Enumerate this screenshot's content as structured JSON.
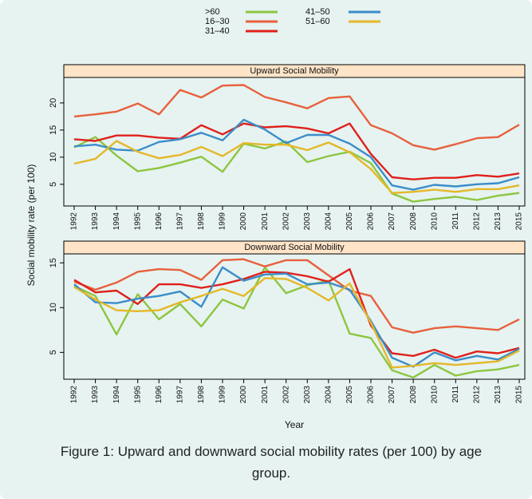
{
  "ylabel": "Social mobility rate (per 100)",
  "xlabel": "Year",
  "caption": "Figure 1: Upward and downward  social mobility rates (per 100) by age group.",
  "chart_data": [
    {
      "type": "line",
      "title": "Upward Social Mobility",
      "categories": [
        "1992",
        "1993",
        "1994",
        "1995",
        "1996",
        "1997",
        "1998",
        "1999",
        "2000",
        "2001",
        "2002",
        "2003",
        "2004",
        "2005",
        "2006",
        "2007",
        "2008",
        "2010",
        "2011",
        "2012",
        "2013",
        "2015"
      ],
      "ylim": [
        1,
        24.7
      ],
      "yticks": [
        5,
        10,
        15,
        20
      ],
      "series": [
        {
          "name": ">60",
          "color": "#8dc63f",
          "values": [
            11.8,
            13.7,
            10.3,
            7.4,
            8.0,
            9.0,
            10.1,
            7.3,
            12.5,
            11.6,
            12.9,
            9.1,
            10.2,
            11.0,
            8.9,
            3.3,
            1.8,
            2.3,
            2.7,
            2.1,
            2.9,
            3.4
          ]
        },
        {
          "name": "16–30",
          "color": "#e8603c",
          "values": [
            17.5,
            17.9,
            18.4,
            19.9,
            17.9,
            22.4,
            21.0,
            23.2,
            23.3,
            21.1,
            20.1,
            19.0,
            20.9,
            21.2,
            15.9,
            14.4,
            12.2,
            11.4,
            12.4,
            13.5,
            13.7,
            16.0
          ]
        },
        {
          "name": "31–40",
          "color": "#e0201b",
          "values": [
            13.3,
            13.0,
            14.0,
            14.0,
            13.6,
            13.4,
            15.9,
            14.2,
            16.2,
            15.5,
            15.7,
            15.3,
            14.4,
            16.2,
            10.6,
            6.3,
            5.9,
            6.2,
            6.2,
            6.7,
            6.4,
            7.0
          ]
        },
        {
          "name": "41–50",
          "color": "#3b8dc9",
          "values": [
            12.0,
            12.3,
            11.4,
            11.2,
            12.8,
            13.3,
            14.5,
            13.1,
            16.9,
            15.1,
            12.6,
            14.1,
            14.1,
            12.5,
            10.0,
            4.8,
            4.0,
            4.9,
            4.6,
            5.0,
            5.2,
            6.3
          ]
        },
        {
          "name": "51–60",
          "color": "#e4b829",
          "values": [
            8.8,
            9.7,
            13.0,
            11.0,
            9.8,
            10.4,
            11.9,
            10.2,
            12.6,
            12.3,
            12.3,
            11.3,
            12.7,
            10.9,
            7.8,
            3.4,
            3.6,
            4.0,
            3.6,
            4.1,
            4.1,
            4.8
          ]
        }
      ]
    },
    {
      "type": "line",
      "title": "Downward Social Mobility",
      "categories": [
        "1992",
        "1993",
        "1994",
        "1995",
        "1996",
        "1997",
        "1998",
        "1999",
        "2000",
        "2001",
        "2002",
        "2003",
        "2004",
        "2005",
        "2006",
        "2007",
        "2008",
        "2010",
        "2011",
        "2012",
        "2013",
        "2015"
      ],
      "ylim": [
        2,
        16
      ],
      "yticks": [
        5,
        10,
        15
      ],
      "series": [
        {
          "name": ">60",
          "color": "#8dc63f",
          "values": [
            12.4,
            11.3,
            7.0,
            11.5,
            8.7,
            10.4,
            7.9,
            10.9,
            9.9,
            14.5,
            11.6,
            12.5,
            13.0,
            7.1,
            6.6,
            3.0,
            2.2,
            3.6,
            2.4,
            2.9,
            3.1,
            3.6
          ]
        },
        {
          "name": "16–30",
          "color": "#e8603c",
          "values": [
            12.9,
            12.0,
            12.8,
            14.0,
            14.3,
            14.2,
            13.1,
            15.3,
            15.4,
            14.6,
            15.3,
            15.3,
            13.6,
            11.9,
            11.3,
            7.8,
            7.2,
            7.7,
            7.9,
            7.7,
            7.5,
            8.7
          ]
        },
        {
          "name": "31–40",
          "color": "#e0201b",
          "values": [
            13.1,
            11.7,
            11.9,
            10.4,
            12.6,
            12.6,
            12.2,
            12.6,
            13.2,
            14.0,
            13.9,
            13.5,
            12.9,
            14.3,
            8.0,
            4.9,
            4.6,
            5.3,
            4.4,
            5.1,
            4.9,
            5.5
          ]
        },
        {
          "name": "41–50",
          "color": "#3b8dc9",
          "values": [
            12.6,
            10.6,
            10.5,
            11.0,
            11.3,
            11.8,
            10.1,
            14.5,
            13.0,
            13.7,
            13.8,
            12.6,
            12.8,
            12.0,
            8.5,
            4.4,
            3.4,
            5.0,
            4.1,
            4.6,
            4.2,
            5.4
          ]
        },
        {
          "name": "51–60",
          "color": "#e4b829",
          "values": [
            12.3,
            10.9,
            9.7,
            9.6,
            9.7,
            10.6,
            11.3,
            12.1,
            11.3,
            13.3,
            13.2,
            12.2,
            10.8,
            12.7,
            8.3,
            3.3,
            3.5,
            3.8,
            3.6,
            3.8,
            4.0,
            5.2
          ]
        }
      ]
    }
  ]
}
